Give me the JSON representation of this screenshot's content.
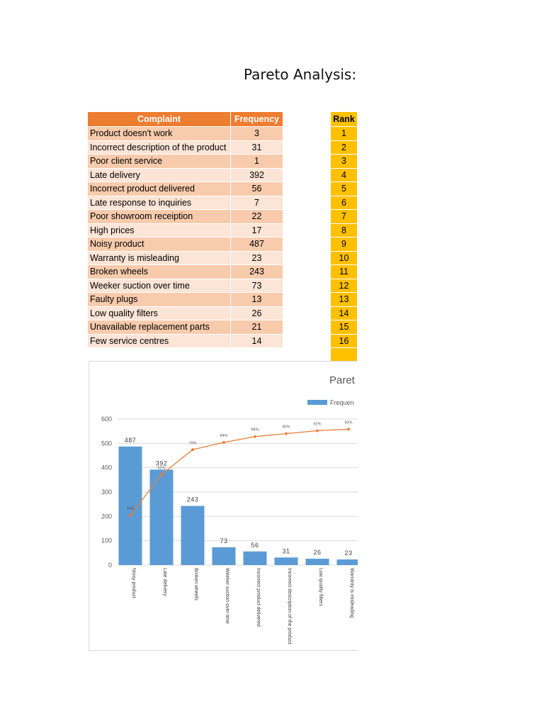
{
  "title": "Pareto Analysis: V",
  "table": {
    "headers": [
      "Complaint",
      "Frequency"
    ],
    "rows": [
      {
        "complaint": "Product doesn't work",
        "frequency": "3"
      },
      {
        "complaint": "Incorrect description of the product",
        "frequency": "31"
      },
      {
        "complaint": "Poor client service",
        "frequency": "1"
      },
      {
        "complaint": "Late delivery",
        "frequency": "392"
      },
      {
        "complaint": "Incorrect product delivered",
        "frequency": "56"
      },
      {
        "complaint": "Late response to inquiries",
        "frequency": "7"
      },
      {
        "complaint": "Poor showroom receiption",
        "frequency": "22"
      },
      {
        "complaint": "High prices",
        "frequency": "17"
      },
      {
        "complaint": "Noisy product",
        "frequency": "487"
      },
      {
        "complaint": "Warranty is misleading",
        "frequency": "23"
      },
      {
        "complaint": "Broken wheels",
        "frequency": "243"
      },
      {
        "complaint": "Weeker suction over time",
        "frequency": "73"
      },
      {
        "complaint": "Faulty plugs",
        "frequency": "13"
      },
      {
        "complaint": "Low quality filters",
        "frequency": "26"
      },
      {
        "complaint": "Unavailable replacement parts",
        "frequency": "21"
      },
      {
        "complaint": "Few service centres",
        "frequency": "14"
      }
    ]
  },
  "rank": {
    "header": "Rank",
    "values": [
      "1",
      "2",
      "3",
      "4",
      "5",
      "6",
      "7",
      "8",
      "9",
      "10",
      "11",
      "12",
      "13",
      "14",
      "15",
      "16",
      ""
    ]
  },
  "colors": {
    "table_header": "#ED7D31",
    "row_odd": "#F8CBAD",
    "row_even": "#FCE4D6",
    "rank": "#FFC000",
    "bar": "#5B9BD5",
    "line": "#ED7D31"
  },
  "chart_data": {
    "type": "bar",
    "title": "Paret",
    "legend": [
      "Frequen"
    ],
    "legend_position": "top",
    "categories": [
      "Noisy product",
      "Late delivery",
      "Broken wheels",
      "Weeker suction over time",
      "Incorrect product delivered",
      "Incorrect description of the product",
      "Low quality filters",
      "Warranty is misleading"
    ],
    "series": [
      {
        "name": "Frequen",
        "type": "bar",
        "values": [
          487,
          392,
          243,
          73,
          56,
          31,
          26,
          23
        ],
        "labels": [
          "487",
          "392",
          "243",
          "73",
          "56",
          "31",
          "26",
          "23"
        ]
      },
      {
        "type": "line",
        "values": [
          34,
          62,
          79,
          84,
          88,
          90,
          92,
          93
        ],
        "labels": [
          "34%",
          "62%",
          "79%",
          "84%",
          "88%",
          "90%",
          "92%",
          "93%"
        ]
      }
    ],
    "yticks": [
      "600",
      "500",
      "400",
      "300",
      "200",
      "100",
      "0"
    ],
    "ylim": [
      0,
      600
    ],
    "grid": true
  }
}
